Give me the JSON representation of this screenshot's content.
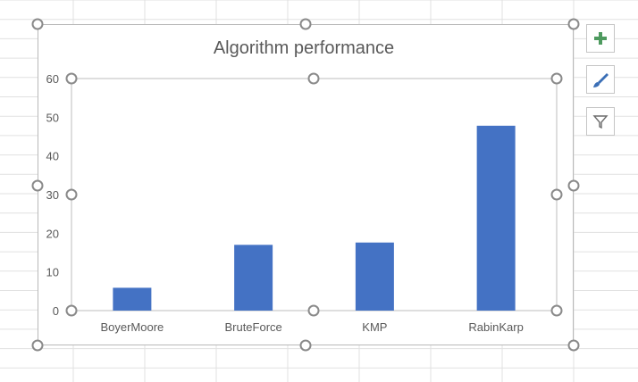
{
  "chart_data": {
    "type": "bar",
    "title": "Algorithm performance",
    "categories": [
      "BoyerMoore",
      "BruteForce",
      "KMP",
      "RabinKarp"
    ],
    "series": [
      {
        "values": [
          5.9,
          17.0,
          17.6,
          47.8
        ],
        "color": "#4472c4"
      }
    ],
    "ylim": [
      0,
      60
    ],
    "yticks": [
      0,
      10,
      20,
      30,
      40,
      50,
      60
    ],
    "grid": false,
    "legend": "none"
  },
  "toolbar": {
    "buttons": [
      {
        "icon": "chart-elements-plus-icon"
      },
      {
        "icon": "chart-styles-brush-icon"
      },
      {
        "icon": "chart-filter-funnel-icon"
      }
    ]
  },
  "colors": {
    "bar": "#4472c4",
    "plus": "#4e9a5f",
    "brush": "#3b6fb6",
    "handle_stroke": "#8a8a8a",
    "sheet_grid": "#e1e1e1"
  }
}
